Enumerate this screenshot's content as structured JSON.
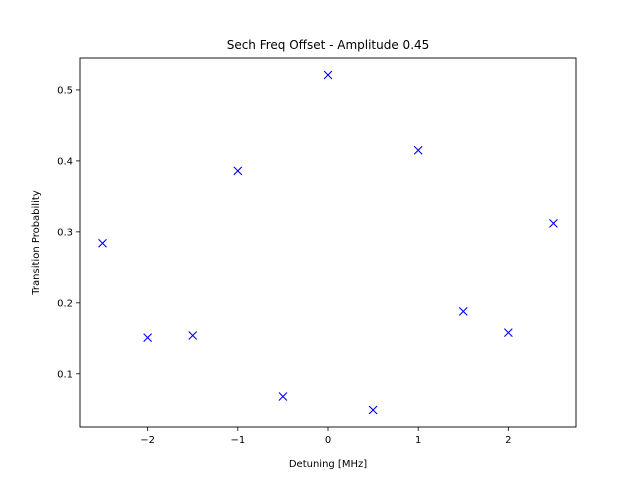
{
  "chart_data": {
    "type": "scatter",
    "title": "Sech Freq Offset - Amplitude 0.45",
    "xlabel": "Detuning [MHz]",
    "ylabel": "Transition Probability",
    "xlim": [
      -2.75,
      2.75
    ],
    "ylim": [
      0.025,
      0.545
    ],
    "x_ticks": [
      -2,
      -1,
      0,
      1,
      2
    ],
    "x_tick_labels": [
      "−2",
      "−1",
      "0",
      "1",
      "2"
    ],
    "y_ticks": [
      0.1,
      0.2,
      0.3,
      0.4,
      0.5
    ],
    "y_tick_labels": [
      "0.1",
      "0.2",
      "0.3",
      "0.4",
      "0.5"
    ],
    "grid": false,
    "marker": "x",
    "marker_color": "#0000ff",
    "points": [
      {
        "x": -2.5,
        "y": 0.284
      },
      {
        "x": -2.0,
        "y": 0.151
      },
      {
        "x": -1.5,
        "y": 0.154
      },
      {
        "x": -1.0,
        "y": 0.386
      },
      {
        "x": -0.5,
        "y": 0.068
      },
      {
        "x": 0.0,
        "y": 0.521
      },
      {
        "x": 0.5,
        "y": 0.049
      },
      {
        "x": 1.0,
        "y": 0.415
      },
      {
        "x": 1.5,
        "y": 0.188
      },
      {
        "x": 2.0,
        "y": 0.158
      },
      {
        "x": 2.5,
        "y": 0.312
      }
    ]
  }
}
